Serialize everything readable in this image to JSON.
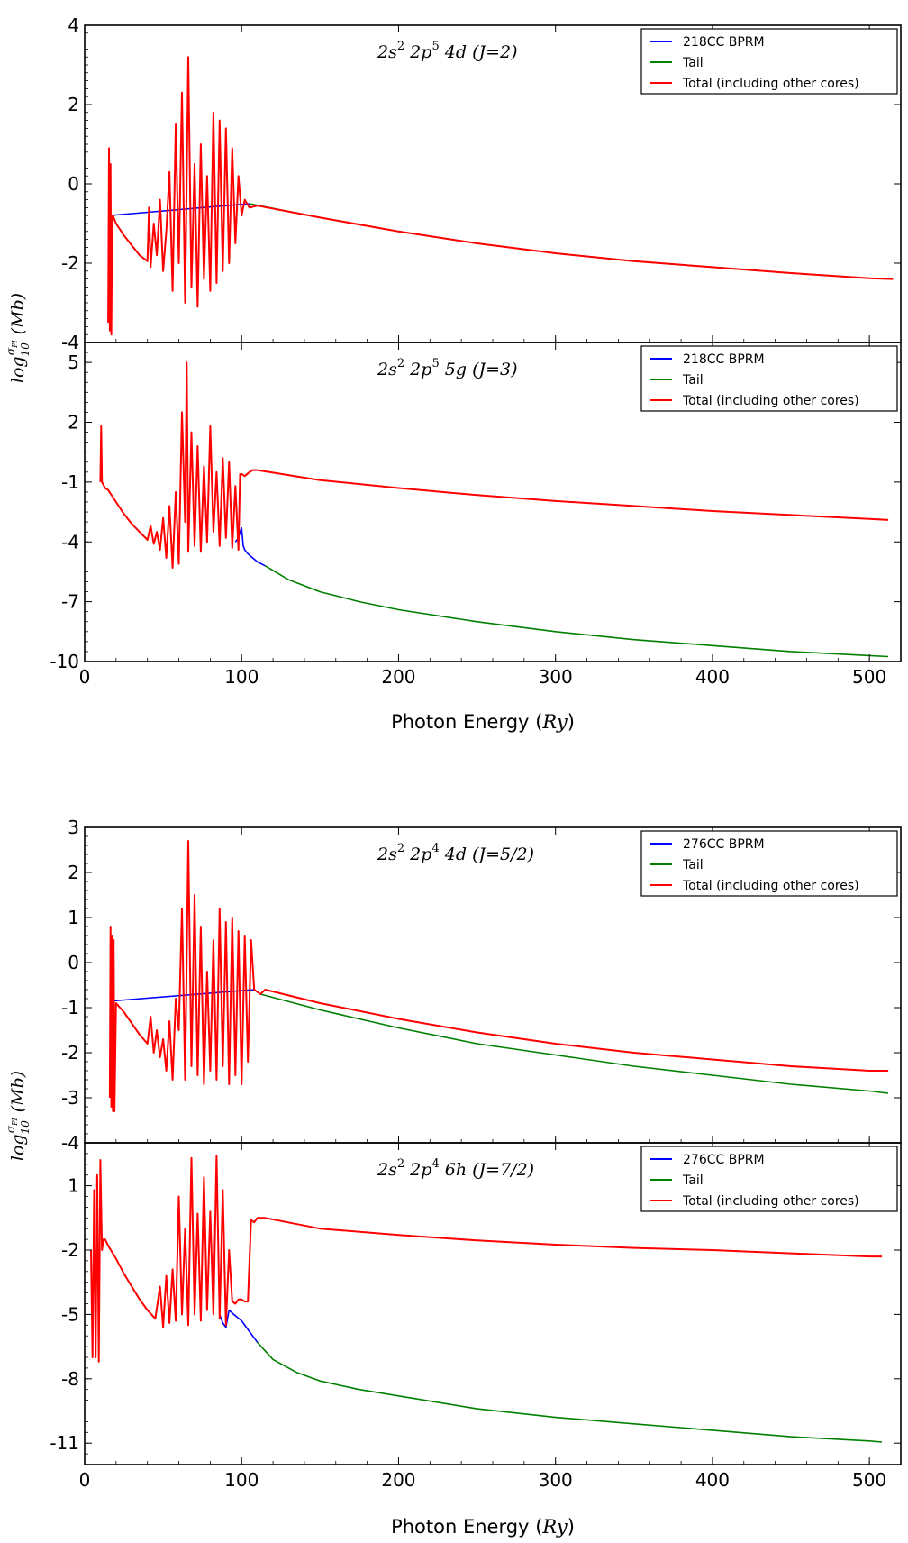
{
  "figure": {
    "top": {
      "xlabel_text": "Photon Energy",
      "xlabel_unit": "Ry",
      "ylabel_text": "log",
      "ylabel_sub": "10",
      "ylabel_sup": "σ",
      "ylabel_sup_sub": "PI",
      "ylabel_unit": "(Mb)"
    },
    "bottom": {
      "xlabel_text": "Photon Energy",
      "xlabel_unit": "Ry",
      "ylabel_text": "log",
      "ylabel_sub": "10",
      "ylabel_sup": "σ",
      "ylabel_sup_sub": "PI",
      "ylabel_unit": "(Mb)"
    }
  },
  "chart_data": [
    {
      "type": "line",
      "title": "",
      "panel_label": {
        "config": "2s",
        "config_sup": "2",
        "p": "2p",
        "p_sup": "5",
        "orb": "4d",
        "J": "(J=2)"
      },
      "xlabel": "",
      "ylabel": "",
      "xlim": [
        0,
        520
      ],
      "ylim": [
        -4,
        4
      ],
      "xticks": [
        0,
        100,
        200,
        300,
        400,
        500
      ],
      "yticks": [
        -4,
        -2,
        0,
        2,
        4
      ],
      "legend_position": "top-right",
      "legend": [
        "218CC BPRM",
        "Tail",
        "Total (including other cores)"
      ],
      "colors": {
        "bprm": "#0000ff",
        "tail": "#008000",
        "total": "#ff0000"
      },
      "series": [
        {
          "name": "218CC BPRM",
          "color": "#0000ff",
          "x": [
            15,
            105
          ],
          "y": [
            -0.8,
            -0.5
          ]
        },
        {
          "name": "Tail",
          "color": "#008000",
          "x": [
            105,
            150,
            200,
            250,
            300,
            350,
            400,
            450,
            500,
            515
          ],
          "y": [
            -0.5,
            -0.85,
            -1.2,
            -1.5,
            -1.75,
            -1.95,
            -2.1,
            -2.25,
            -2.38,
            -2.4
          ]
        },
        {
          "name": "Total (including other cores)",
          "color": "#ff0000",
          "x": [
            15,
            15.5,
            16,
            16.5,
            17,
            17.5,
            18,
            20,
            25,
            30,
            35,
            40,
            41,
            42,
            44,
            46,
            48,
            50,
            52,
            54,
            56,
            58,
            60,
            62,
            64,
            66,
            68,
            70,
            72,
            74,
            76,
            78,
            80,
            82,
            84,
            86,
            88,
            90,
            92,
            94,
            96,
            98,
            100,
            102,
            105,
            110,
            150,
            200,
            250,
            300,
            350,
            400,
            450,
            500,
            515
          ],
          "y": [
            -3.5,
            0.9,
            -3.7,
            0.5,
            -3.8,
            -0.8,
            -0.8,
            -1.0,
            -1.3,
            -1.55,
            -1.8,
            -1.95,
            -0.6,
            -2.1,
            -1.0,
            -1.8,
            -0.4,
            -2.2,
            -1.2,
            0.3,
            -2.7,
            1.5,
            -2.0,
            2.3,
            -3.0,
            3.2,
            -2.6,
            0.5,
            -3.1,
            1.0,
            -2.4,
            0.2,
            -2.7,
            1.8,
            -2.5,
            1.6,
            -2.2,
            1.4,
            -2.0,
            0.9,
            -1.5,
            0.2,
            -0.8,
            -0.4,
            -0.6,
            -0.55,
            -0.85,
            -1.2,
            -1.5,
            -1.75,
            -1.95,
            -2.1,
            -2.25,
            -2.38,
            -2.4
          ]
        }
      ]
    },
    {
      "type": "line",
      "title": "",
      "panel_label": {
        "config": "2s",
        "config_sup": "2",
        "p": "2p",
        "p_sup": "5",
        "orb": "5g",
        "J": "(J=3)"
      },
      "xlabel": "Photon Energy (Ry)",
      "ylabel": "",
      "xlim": [
        0,
        520
      ],
      "ylim": [
        -10,
        6
      ],
      "xticks": [
        0,
        100,
        200,
        300,
        400,
        500
      ],
      "yticks": [
        -10,
        -7,
        -4,
        -1,
        2,
        5
      ],
      "legend_position": "top-right",
      "legend": [
        "218CC BPRM",
        "Tail",
        "Total (including other cores)"
      ],
      "colors": {
        "bprm": "#0000ff",
        "tail": "#008000",
        "total": "#ff0000"
      },
      "series": [
        {
          "name": "218CC BPRM",
          "color": "#0000ff",
          "x": [
            96,
            98,
            99,
            100,
            101,
            102,
            104,
            110,
            115
          ],
          "y": [
            -4.0,
            -3.8,
            -3.5,
            -3.3,
            -4.2,
            -4.4,
            -4.6,
            -5.0,
            -5.2
          ]
        },
        {
          "name": "Tail",
          "color": "#008000",
          "x": [
            115,
            130,
            150,
            175,
            200,
            250,
            300,
            350,
            400,
            450,
            500,
            512
          ],
          "y": [
            -5.2,
            -5.9,
            -6.5,
            -7.0,
            -7.4,
            -8.0,
            -8.5,
            -8.9,
            -9.2,
            -9.5,
            -9.7,
            -9.75
          ]
        },
        {
          "name": "Total (including other cores)",
          "color": "#ff0000",
          "x": [
            10,
            10.5,
            11,
            13,
            15,
            20,
            25,
            30,
            35,
            40,
            42,
            44,
            46,
            48,
            50,
            52,
            54,
            56,
            58,
            60,
            62,
            64,
            65,
            66,
            68,
            70,
            72,
            74,
            76,
            78,
            80,
            82,
            84,
            86,
            88,
            90,
            92,
            94,
            96,
            98,
            99,
            100,
            102,
            105,
            107,
            110,
            150,
            200,
            250,
            300,
            350,
            400,
            450,
            500,
            512
          ],
          "y": [
            -1.0,
            1.8,
            -1.0,
            -1.3,
            -1.4,
            -2.0,
            -2.6,
            -3.1,
            -3.5,
            -3.9,
            -3.2,
            -4.1,
            -3.5,
            -4.4,
            -2.8,
            -4.8,
            -2.2,
            -5.3,
            -1.5,
            -5.1,
            2.5,
            -3.0,
            5.0,
            -4.5,
            1.5,
            -4.2,
            0.8,
            -4.5,
            -0.2,
            -4.0,
            1.8,
            -3.5,
            -0.5,
            -4.2,
            0.2,
            -3.8,
            0.0,
            -4.3,
            -1.2,
            -4.4,
            -0.6,
            -0.6,
            -0.7,
            -0.5,
            -0.4,
            -0.4,
            -0.9,
            -1.3,
            -1.65,
            -1.95,
            -2.2,
            -2.45,
            -2.65,
            -2.85,
            -2.9
          ]
        }
      ]
    },
    {
      "type": "line",
      "title": "",
      "panel_label": {
        "config": "2s",
        "config_sup": "2",
        "p": "2p",
        "p_sup": "4",
        "orb": "4d",
        "J": "(J=5/2)"
      },
      "xlabel": "",
      "ylabel": "",
      "xlim": [
        0,
        520
      ],
      "ylim": [
        -4,
        3
      ],
      "xticks": [
        0,
        100,
        200,
        300,
        400,
        500
      ],
      "yticks": [
        -4,
        -3,
        -2,
        -1,
        0,
        1,
        2,
        3
      ],
      "legend_position": "top-right",
      "legend": [
        "276CC BPRM",
        "Tail",
        "Total (including other cores)"
      ],
      "colors": {
        "bprm": "#0000ff",
        "tail": "#008000",
        "total": "#ff0000"
      },
      "series": [
        {
          "name": "276CC BPRM",
          "color": "#0000ff",
          "x": [
            18,
            108,
            112
          ],
          "y": [
            -0.85,
            -0.6,
            -0.7
          ]
        },
        {
          "name": "Tail",
          "color": "#008000",
          "x": [
            112,
            150,
            200,
            250,
            300,
            350,
            400,
            450,
            500,
            512
          ],
          "y": [
            -0.7,
            -1.05,
            -1.45,
            -1.8,
            -2.05,
            -2.3,
            -2.5,
            -2.7,
            -2.85,
            -2.9
          ]
        },
        {
          "name": "Total (including other cores)",
          "color": "#ff0000",
          "x": [
            16,
            16.5,
            17,
            17.5,
            18,
            18.5,
            19,
            20,
            25,
            30,
            35,
            40,
            42,
            44,
            46,
            48,
            50,
            52,
            54,
            56,
            58,
            60,
            62,
            64,
            66,
            68,
            70,
            72,
            74,
            76,
            78,
            80,
            82,
            84,
            86,
            88,
            90,
            92,
            94,
            96,
            98,
            100,
            102,
            104,
            106,
            108,
            112,
            115,
            150,
            200,
            250,
            300,
            350,
            400,
            450,
            500,
            512
          ],
          "y": [
            -3.0,
            0.8,
            -3.2,
            0.6,
            -3.3,
            0.5,
            -3.3,
            -0.9,
            -1.1,
            -1.35,
            -1.6,
            -1.8,
            -1.2,
            -2.0,
            -1.5,
            -2.1,
            -1.7,
            -2.4,
            -1.3,
            -2.6,
            -0.8,
            -1.5,
            1.2,
            -2.6,
            2.7,
            -2.3,
            1.5,
            -2.5,
            0.8,
            -2.7,
            -0.2,
            -2.4,
            0.5,
            -2.6,
            1.2,
            -2.3,
            0.9,
            -2.7,
            1.0,
            -2.5,
            0.7,
            -2.7,
            0.6,
            -2.2,
            0.5,
            -0.6,
            -0.7,
            -0.6,
            -0.9,
            -1.25,
            -1.55,
            -1.8,
            -2.0,
            -2.15,
            -2.3,
            -2.4,
            -2.4
          ]
        }
      ]
    },
    {
      "type": "line",
      "title": "",
      "panel_label": {
        "config": "2s",
        "config_sup": "2",
        "p": "2p",
        "p_sup": "4",
        "orb": "6h",
        "J": "(J=7/2)"
      },
      "xlabel": "Photon Energy (Ry)",
      "ylabel": "",
      "xlim": [
        0,
        520
      ],
      "ylim": [
        -12,
        3
      ],
      "xticks": [
        0,
        100,
        200,
        300,
        400,
        500
      ],
      "yticks": [
        -11,
        -8,
        -5,
        -2,
        1
      ],
      "legend_position": "top-right",
      "legend": [
        "276CC BPRM",
        "Tail",
        "Total (including other cores)"
      ],
      "colors": {
        "bprm": "#0000ff",
        "tail": "#008000",
        "total": "#ff0000"
      },
      "series": [
        {
          "name": "276CC BPRM",
          "color": "#0000ff",
          "x": [
            86,
            88,
            90,
            92,
            95,
            100,
            105,
            110
          ],
          "y": [
            -5.0,
            -5.4,
            -5.6,
            -4.8,
            -5.0,
            -5.3,
            -5.8,
            -6.3
          ]
        },
        {
          "name": "Tail",
          "color": "#008000",
          "x": [
            110,
            120,
            135,
            150,
            175,
            200,
            250,
            300,
            350,
            400,
            450,
            500,
            508
          ],
          "y": [
            -6.3,
            -7.1,
            -7.7,
            -8.1,
            -8.5,
            -8.8,
            -9.4,
            -9.8,
            -10.1,
            -10.4,
            -10.7,
            -10.9,
            -10.95
          ]
        },
        {
          "name": "Total (including other cores)",
          "color": "#ff0000",
          "x": [
            4,
            5,
            6,
            7,
            8,
            9,
            10,
            11,
            12,
            13,
            15,
            20,
            25,
            30,
            35,
            40,
            45,
            48,
            50,
            52,
            54,
            56,
            58,
            60,
            62,
            64,
            66,
            68,
            70,
            72,
            74,
            76,
            78,
            80,
            82,
            84,
            86,
            88,
            90,
            92,
            94,
            96,
            98,
            100,
            102,
            104,
            106,
            108,
            110,
            115,
            150,
            200,
            250,
            300,
            350,
            400,
            450,
            500,
            508
          ],
          "y": [
            -2.0,
            -7.0,
            0.8,
            -7.0,
            1.5,
            -7.2,
            2.2,
            -2.0,
            -1.5,
            -1.5,
            -1.8,
            -2.4,
            -3.1,
            -3.7,
            -4.3,
            -4.8,
            -5.2,
            -3.7,
            -5.6,
            -3.2,
            -5.4,
            -2.9,
            -5.3,
            0.5,
            -5.0,
            -1.0,
            -5.5,
            2.3,
            -5.0,
            -0.3,
            -5.3,
            1.4,
            -4.8,
            -0.2,
            -5.0,
            2.4,
            -5.2,
            0.8,
            -5.5,
            -2.0,
            -4.4,
            -4.5,
            -4.3,
            -4.3,
            -4.4,
            -4.4,
            -0.6,
            -0.7,
            -0.5,
            -0.5,
            -1.0,
            -1.3,
            -1.55,
            -1.75,
            -1.9,
            -2.0,
            -2.15,
            -2.3,
            -2.3
          ]
        }
      ]
    }
  ]
}
